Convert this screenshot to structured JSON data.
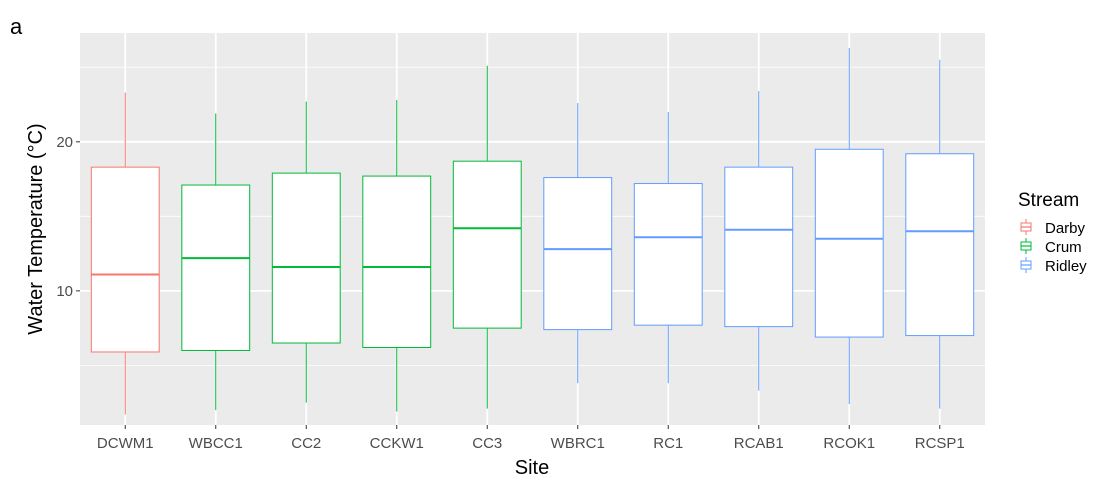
{
  "panel_label": "a",
  "chart_data": {
    "type": "box",
    "title": "",
    "xlabel": "Site",
    "ylabel": "Water Temperature (°C)",
    "ylim": [
      1,
      27.3
    ],
    "yticks": [
      10,
      20
    ],
    "grid": true,
    "legend_position": "right",
    "legend": {
      "title": "Stream",
      "entries": [
        {
          "name": "Darby",
          "color": "#F8766D"
        },
        {
          "name": "Crum",
          "color": "#00BA38"
        },
        {
          "name": "Ridley",
          "color": "#619CFF"
        }
      ]
    },
    "categories": [
      "DCWM1",
      "WBCC1",
      "CC2",
      "CCKW1",
      "CC3",
      "WBRC1",
      "RC1",
      "RCAB1",
      "RCOK1",
      "RCSP1"
    ],
    "boxes": [
      {
        "site": "DCWM1",
        "stream": "Darby",
        "min": 1.7,
        "q1": 5.9,
        "median": 11.1,
        "q3": 18.3,
        "max": 23.3
      },
      {
        "site": "WBCC1",
        "stream": "Crum",
        "min": 2.0,
        "q1": 6.0,
        "median": 12.2,
        "q3": 17.1,
        "max": 21.9
      },
      {
        "site": "CC2",
        "stream": "Crum",
        "min": 2.5,
        "q1": 6.5,
        "median": 11.6,
        "q3": 17.9,
        "max": 22.7
      },
      {
        "site": "CCKW1",
        "stream": "Crum",
        "min": 1.9,
        "q1": 6.2,
        "median": 11.6,
        "q3": 17.7,
        "max": 22.8
      },
      {
        "site": "CC3",
        "stream": "Crum",
        "min": 2.1,
        "q1": 7.5,
        "median": 14.2,
        "q3": 18.7,
        "max": 25.1
      },
      {
        "site": "WBRC1",
        "stream": "Ridley",
        "min": 3.8,
        "q1": 7.4,
        "median": 12.8,
        "q3": 17.6,
        "max": 22.6
      },
      {
        "site": "RC1",
        "stream": "Ridley",
        "min": 3.8,
        "q1": 7.7,
        "median": 13.6,
        "q3": 17.2,
        "max": 22.0
      },
      {
        "site": "RCAB1",
        "stream": "Ridley",
        "min": 3.3,
        "q1": 7.6,
        "median": 14.1,
        "q3": 18.3,
        "max": 23.4
      },
      {
        "site": "RCOK1",
        "stream": "Ridley",
        "min": 2.4,
        "q1": 6.9,
        "median": 13.5,
        "q3": 19.5,
        "max": 26.3
      },
      {
        "site": "RCSP1",
        "stream": "Ridley",
        "min": 2.1,
        "q1": 7.0,
        "median": 14.0,
        "q3": 19.2,
        "max": 25.5
      }
    ]
  }
}
